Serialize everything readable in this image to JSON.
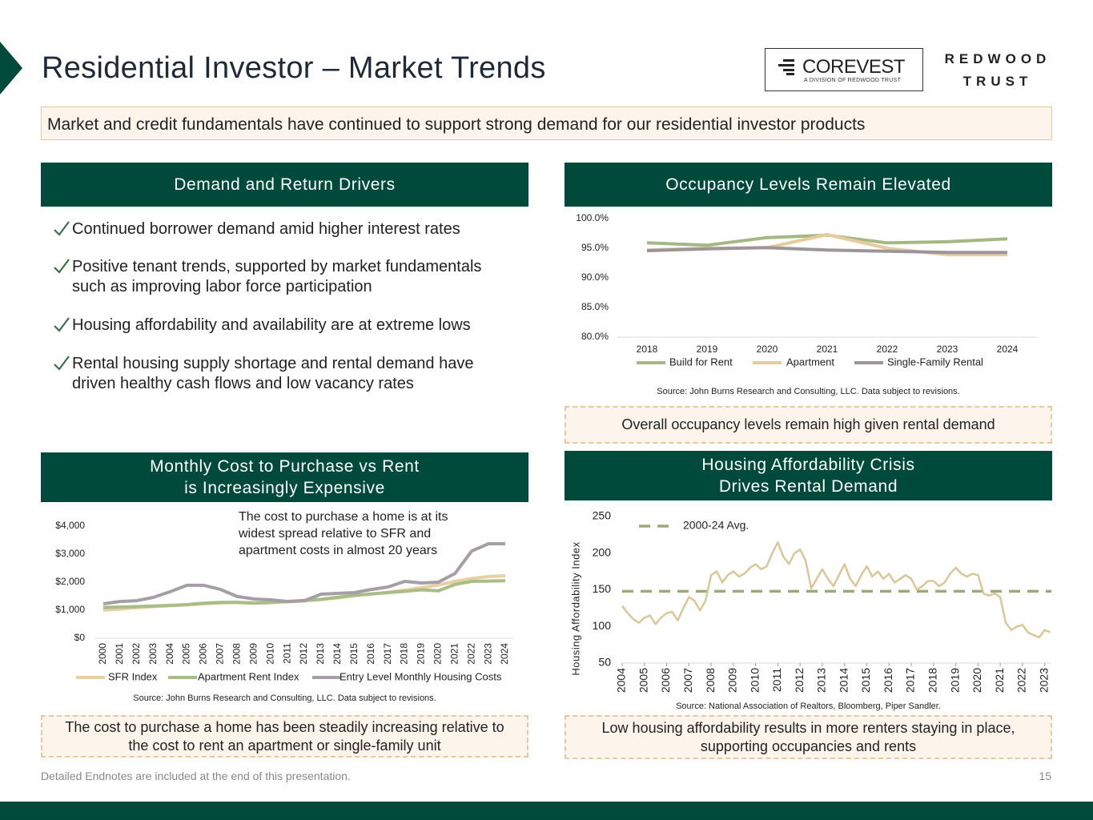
{
  "header": {
    "title": "Residential Investor – Market Trends",
    "logo": {
      "name": "COREVEST",
      "tagline": "A DIVISION OF REDWOOD TRUST"
    },
    "brand": [
      "REDWOOD",
      "TRUST"
    ]
  },
  "banner": "Market and credit fundamentals have continued to support strong demand for our residential investor products",
  "demand_drivers": {
    "title": "Demand and Return Drivers",
    "bullets": [
      [
        "Continued borrower demand amid higher interest rates"
      ],
      [
        "Positive tenant trends, supported by market fundamentals",
        "such as improving labor force participation"
      ],
      [
        "Housing affordability and availability are at extreme lows"
      ],
      [
        "Rental housing supply shortage and rental demand have",
        "driven healthy cash flows and low vacancy rates"
      ]
    ]
  },
  "occupancy": {
    "title": "Occupancy Levels Remain Elevated",
    "chart": {
      "type": "line",
      "categories": [
        "2018",
        "2019",
        "2020",
        "2021",
        "2022",
        "2023",
        "2024"
      ],
      "series": [
        {
          "name": "Build for Rent",
          "color": "#a3b882",
          "values": [
            95.9,
            95.5,
            96.8,
            97.2,
            95.9,
            96.1,
            96.6
          ]
        },
        {
          "name": "Apartment",
          "color": "#e6cc9c",
          "values": [
            94.7,
            95.0,
            95.1,
            97.3,
            95.0,
            93.9,
            93.9
          ]
        },
        {
          "name": "Single-Family Rental",
          "color": "#9c969b",
          "values": [
            94.6,
            94.9,
            95.1,
            94.7,
            94.5,
            94.3,
            94.3
          ]
        }
      ],
      "ylim": [
        80,
        100
      ],
      "yticks": [
        {
          "value": 80,
          "label": "80.0%"
        },
        {
          "value": 85,
          "label": "85.0%"
        },
        {
          "value": 90,
          "label": "90.0%"
        },
        {
          "value": 95,
          "label": "95.0%"
        },
        {
          "value": 100,
          "label": "100.0%"
        }
      ],
      "legend": "bottom"
    },
    "source": "Source: John Burns Research and Consulting, LLC. Data subject to revisions.",
    "callout": "Overall occupancy levels remain high given rental demand"
  },
  "cost": {
    "title": [
      "Monthly Cost to Purchase vs Rent",
      "is Increasingly Expensive"
    ],
    "chart": {
      "type": "line",
      "categories": [
        "2000",
        "2001",
        "2002",
        "2003",
        "2004",
        "2005",
        "2006",
        "2007",
        "2008",
        "2009",
        "2010",
        "2011",
        "2012",
        "2013",
        "2014",
        "2015",
        "2016",
        "2017",
        "2018",
        "2019",
        "2020",
        "2021",
        "2022",
        "2023",
        "2024"
      ],
      "series": [
        {
          "name": "SFR Index",
          "color": "#e8d0a2",
          "values": [
            1000,
            1040,
            1090,
            1130,
            1160,
            1190,
            1230,
            1260,
            1280,
            1270,
            1280,
            1300,
            1330,
            1380,
            1440,
            1520,
            1580,
            1640,
            1720,
            1800,
            1900,
            2030,
            2130,
            2200,
            2230
          ]
        },
        {
          "name": "Apartment Rent Index",
          "color": "#a9bd88",
          "values": [
            1100,
            1110,
            1130,
            1150,
            1170,
            1200,
            1250,
            1280,
            1280,
            1250,
            1270,
            1310,
            1350,
            1390,
            1460,
            1530,
            1580,
            1630,
            1670,
            1730,
            1690,
            1920,
            2030,
            2040,
            2050
          ]
        },
        {
          "name": "Entry Level Monthly Housing Costs",
          "color": "#a59ea6",
          "values": [
            1230,
            1310,
            1340,
            1460,
            1660,
            1890,
            1890,
            1740,
            1490,
            1400,
            1370,
            1310,
            1340,
            1570,
            1600,
            1630,
            1740,
            1830,
            2030,
            1970,
            2000,
            2310,
            3110,
            3370,
            3370
          ]
        }
      ],
      "ylim": [
        0,
        4000
      ],
      "yticks": [
        {
          "value": 0,
          "label": "$0"
        },
        {
          "value": 1000,
          "label": "$1,000"
        },
        {
          "value": 2000,
          "label": "$2,000"
        },
        {
          "value": 3000,
          "label": "$3,000"
        },
        {
          "value": 4000,
          "label": "$4,000"
        }
      ],
      "annotation": [
        "The cost to purchase a home is at its",
        "widest spread relative to SFR and",
        "apartment costs in almost 20 years"
      ],
      "legend": "bottom"
    },
    "source": "Source: John Burns Research and Consulting, LLC. Data subject to revisions.",
    "callout": "The cost to purchase a home has been steadily increasing relative to the cost to rent an apartment or single-family unit"
  },
  "affordability": {
    "title": [
      "Housing Affordability Crisis",
      "Drives Rental Demand"
    ],
    "chart": {
      "type": "line",
      "y_label": "Housing Affordability Index",
      "color": "#d9c796",
      "x": [
        2004,
        2004.25,
        2004.5,
        2004.75,
        2005,
        2005.25,
        2005.5,
        2005.75,
        2006,
        2006.25,
        2006.5,
        2006.75,
        2007,
        2007.25,
        2007.5,
        2007.75,
        2008,
        2008.25,
        2008.5,
        2008.75,
        2009,
        2009.25,
        2009.5,
        2009.75,
        2010,
        2010.25,
        2010.5,
        2010.75,
        2011,
        2011.25,
        2011.5,
        2011.75,
        2012,
        2012.25,
        2012.5,
        2012.75,
        2013,
        2013.25,
        2013.5,
        2013.75,
        2014,
        2014.25,
        2014.5,
        2014.75,
        2015,
        2015.25,
        2015.5,
        2015.75,
        2016,
        2016.25,
        2016.5,
        2016.75,
        2017,
        2017.25,
        2017.5,
        2017.75,
        2018,
        2018.25,
        2018.5,
        2018.75,
        2019,
        2019.25,
        2019.5,
        2019.75,
        2020,
        2020.25,
        2020.5,
        2020.75,
        2021,
        2021.25,
        2021.5,
        2021.75,
        2022,
        2022.25,
        2022.5,
        2022.75,
        2023,
        2023.25
      ],
      "values": [
        128,
        118,
        110,
        105,
        112,
        115,
        103,
        112,
        118,
        120,
        108,
        125,
        140,
        135,
        122,
        135,
        170,
        175,
        160,
        170,
        175,
        168,
        172,
        180,
        185,
        178,
        182,
        200,
        215,
        195,
        185,
        200,
        205,
        190,
        152,
        165,
        178,
        165,
        155,
        170,
        185,
        165,
        155,
        170,
        182,
        168,
        175,
        165,
        172,
        160,
        165,
        170,
        165,
        150,
        155,
        162,
        162,
        155,
        160,
        172,
        180,
        172,
        168,
        172,
        170,
        145,
        142,
        145,
        140,
        105,
        95,
        100,
        102,
        92,
        88,
        85,
        95,
        92
      ],
      "average": {
        "label": "2000-24 Avg.",
        "value": 148,
        "color": "#9aab7a"
      },
      "xlim": [
        2004,
        2023.3
      ],
      "xticks": [
        2004,
        2005,
        2006,
        2007,
        2008,
        2009,
        2010,
        2011,
        2012,
        2013,
        2014,
        2015,
        2016,
        2017,
        2018,
        2019,
        2020,
        2021,
        2022,
        2023
      ],
      "ylim": [
        50,
        250
      ],
      "yticks": [
        50,
        100,
        150,
        200,
        250
      ]
    },
    "source": "Source: National Association of Realtors, Bloomberg, Piper Sandler.",
    "callout": "Low housing affordability results in more renters staying in place, supporting occupancies and rents"
  },
  "footer": {
    "note": "Detailed Endnotes are included at the end of this presentation.",
    "page": 15
  }
}
